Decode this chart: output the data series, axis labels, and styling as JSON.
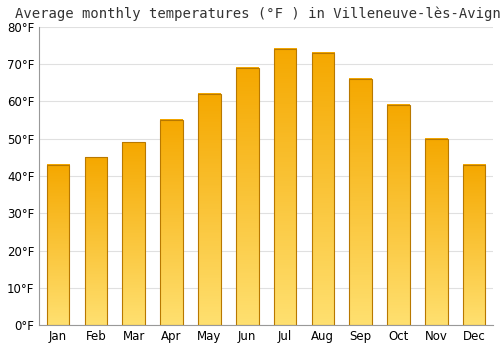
{
  "title": "Average monthly temperatures (°F ) in Villeneuve-lÃ¨s-Avignon",
  "title_display": "Average monthly temperatures (°F ) in Villeneuve-lès-Avignon",
  "months": [
    "Jan",
    "Feb",
    "Mar",
    "Apr",
    "May",
    "Jun",
    "Jul",
    "Aug",
    "Sep",
    "Oct",
    "Nov",
    "Dec"
  ],
  "values": [
    43,
    45,
    49,
    55,
    62,
    69,
    74,
    73,
    66,
    59,
    50,
    43
  ],
  "ylim": [
    0,
    80
  ],
  "yticks": [
    0,
    10,
    20,
    30,
    40,
    50,
    60,
    70,
    80
  ],
  "ytick_labels": [
    "0°F",
    "10°F",
    "20°F",
    "30°F",
    "40°F",
    "50°F",
    "60°F",
    "70°F",
    "80°F"
  ],
  "bar_color_top": "#FFE070",
  "bar_color_bottom": "#F5A800",
  "bar_edge_color": "#B87800",
  "background_color": "#ffffff",
  "grid_color": "#e0e0e0",
  "title_fontsize": 10,
  "tick_fontsize": 8.5,
  "bar_width": 0.6
}
